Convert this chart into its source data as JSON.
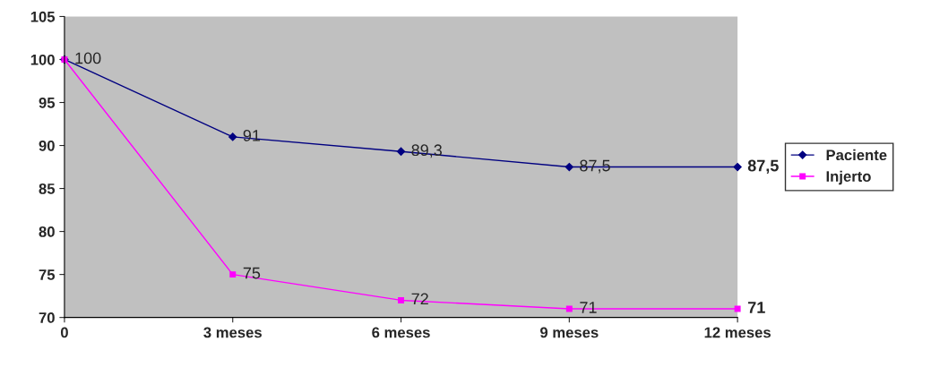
{
  "chart_data": {
    "type": "line",
    "categories": [
      "0",
      "3 meses",
      "6 meses",
      "9 meses",
      "12 meses"
    ],
    "series": [
      {
        "name": "Paciente",
        "color": "#000080",
        "marker": "diamond",
        "values": [
          100,
          91,
          89.3,
          87.5,
          87.5
        ],
        "value_labels": [
          "100",
          "91",
          "89,3",
          "87,5",
          "87,5"
        ]
      },
      {
        "name": "Injerto",
        "color": "#ff00ff",
        "marker": "square",
        "values": [
          100,
          75,
          72,
          71,
          71
        ],
        "value_labels": [
          null,
          "75",
          "72",
          "71",
          "71"
        ]
      }
    ],
    "ylim": [
      70,
      105
    ],
    "yticks": [
      70,
      75,
      80,
      85,
      90,
      95,
      100,
      105
    ],
    "grid": false,
    "legend": "right"
  }
}
